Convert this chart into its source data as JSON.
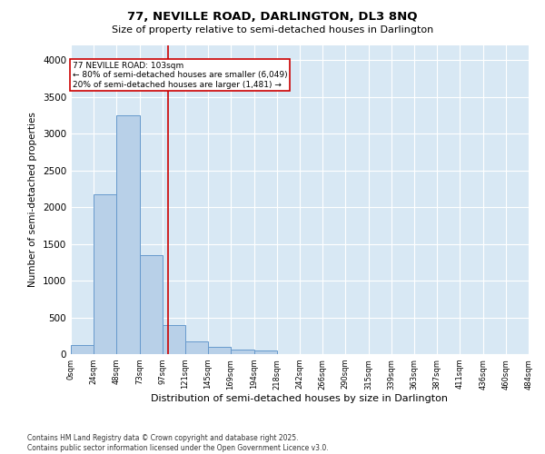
{
  "title_line1": "77, NEVILLE ROAD, DARLINGTON, DL3 8NQ",
  "title_line2": "Size of property relative to semi-detached houses in Darlington",
  "xlabel": "Distribution of semi-detached houses by size in Darlington",
  "ylabel": "Number of semi-detached properties",
  "footnote": "Contains HM Land Registry data © Crown copyright and database right 2025.\nContains public sector information licensed under the Open Government Licence v3.0.",
  "bar_edges": [
    0,
    24,
    48,
    73,
    97,
    121,
    145,
    169,
    194,
    218,
    242,
    266,
    290,
    315,
    339,
    363,
    387,
    411,
    436,
    460,
    484
  ],
  "bar_heights": [
    120,
    2175,
    3250,
    1350,
    400,
    170,
    100,
    60,
    50,
    0,
    0,
    0,
    0,
    0,
    0,
    0,
    0,
    0,
    0,
    0
  ],
  "tick_labels": [
    "0sqm",
    "24sqm",
    "48sqm",
    "73sqm",
    "97sqm",
    "121sqm",
    "145sqm",
    "169sqm",
    "194sqm",
    "218sqm",
    "242sqm",
    "266sqm",
    "290sqm",
    "315sqm",
    "339sqm",
    "363sqm",
    "387sqm",
    "411sqm",
    "436sqm",
    "460sqm",
    "484sqm"
  ],
  "bar_color": "#b8d0e8",
  "bar_edge_color": "#6699cc",
  "background_color": "#d8e8f4",
  "grid_color": "#ffffff",
  "vline_x": 103,
  "vline_color": "#cc0000",
  "annotation_text": "77 NEVILLE ROAD: 103sqm\n← 80% of semi-detached houses are smaller (6,049)\n20% of semi-detached houses are larger (1,481) →",
  "annotation_box_color": "#cc0000",
  "ylim": [
    0,
    4200
  ],
  "yticks": [
    0,
    500,
    1000,
    1500,
    2000,
    2500,
    3000,
    3500,
    4000
  ],
  "fig_width": 6.0,
  "fig_height": 5.0,
  "dpi": 100
}
